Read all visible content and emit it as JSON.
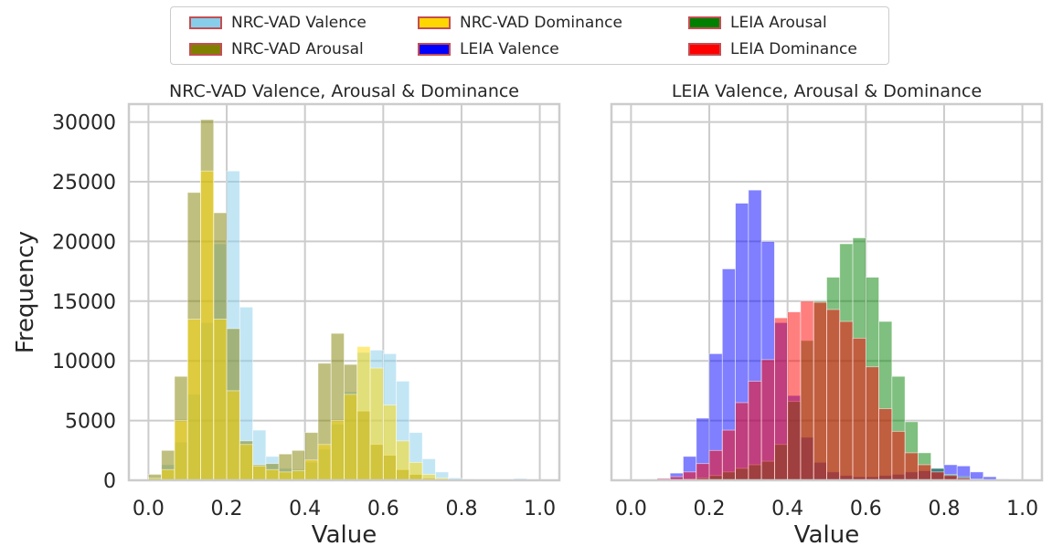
{
  "legend": {
    "items": [
      {
        "label": "NRC-VAD Valence",
        "color": "#87ceeb"
      },
      {
        "label": "NRC-VAD Arousal",
        "color": "#808000"
      },
      {
        "label": "NRC-VAD Dominance",
        "color": "#ffd700"
      },
      {
        "label": "LEIA Valence",
        "color": "#0000ff"
      },
      {
        "label": "LEIA Arousal",
        "color": "#008000"
      },
      {
        "label": "LEIA Dominance",
        "color": "#ff0000"
      }
    ],
    "border_color": "#c44e52"
  },
  "chart_data": [
    {
      "type": "bar",
      "title": "NRC-VAD Valence, Arousal & Dominance",
      "xlabel": "Value",
      "ylabel": "Frequency",
      "xlim": [
        -0.05,
        1.05
      ],
      "ylim": [
        0,
        31500
      ],
      "xticks": [
        "0.0",
        "0.2",
        "0.4",
        "0.6",
        "0.8",
        "1.0"
      ],
      "yticks": [
        "0",
        "5000",
        "10000",
        "15000",
        "20000",
        "25000",
        "30000"
      ],
      "grid": true,
      "bin_width": 0.0333,
      "alpha": 0.5,
      "series": [
        {
          "name": "NRC-VAD Valence",
          "color": "#87ceeb",
          "bins": [
            0,
            0.0333,
            0.0667,
            0.1,
            0.1333,
            0.1667,
            0.2,
            0.2333,
            0.2667,
            0.3,
            0.3333,
            0.3667,
            0.4,
            0.4333,
            0.4667,
            0.5,
            0.5333,
            0.5667,
            0.6,
            0.6333,
            0.6667,
            0.7,
            0.7333,
            0.7667,
            0.8,
            0.8333,
            0.8667,
            0.9,
            0.9333,
            0.9667
          ],
          "values": [
            300,
            1300,
            3200,
            7200,
            13200,
            19800,
            25900,
            14500,
            4200,
            2000,
            1000,
            900,
            1500,
            2600,
            4700,
            7400,
            10700,
            10900,
            10600,
            8300,
            4000,
            1800,
            700,
            200,
            100,
            50,
            30,
            20,
            150,
            50
          ]
        },
        {
          "name": "NRC-VAD Arousal",
          "color": "#808000",
          "bins": [
            0,
            0.0333,
            0.0667,
            0.1,
            0.1333,
            0.1667,
            0.2,
            0.2333,
            0.2667,
            0.3,
            0.3333,
            0.3667,
            0.4,
            0.4333,
            0.4667,
            0.5,
            0.5333,
            0.5667,
            0.6,
            0.6333,
            0.6667,
            0.7,
            0.7333,
            0.7667,
            0.8,
            0.8333,
            0.8667,
            0.9,
            0.9333,
            0.9667
          ],
          "values": [
            500,
            2500,
            8700,
            24100,
            30200,
            22400,
            12700,
            3300,
            1300,
            1400,
            2200,
            2500,
            4000,
            9800,
            12300,
            9700,
            5800,
            3000,
            2100,
            900,
            500,
            200,
            100,
            50,
            30,
            20,
            10,
            10,
            10,
            10
          ]
        },
        {
          "name": "NRC-VAD Dominance",
          "color": "#ffd700",
          "bins": [
            0,
            0.0333,
            0.0667,
            0.1,
            0.1333,
            0.1667,
            0.2,
            0.2333,
            0.2667,
            0.3,
            0.3333,
            0.3667,
            0.4,
            0.4333,
            0.4667,
            0.5,
            0.5333,
            0.5667,
            0.6,
            0.6333,
            0.6667,
            0.7,
            0.7333,
            0.7667,
            0.8,
            0.8333,
            0.8667,
            0.9,
            0.9333,
            0.9667
          ],
          "values": [
            200,
            900,
            5000,
            13500,
            25900,
            13500,
            7500,
            3000,
            1200,
            900,
            700,
            800,
            1700,
            3000,
            5000,
            7200,
            11200,
            9400,
            6300,
            3300,
            1500,
            500,
            200,
            60,
            30,
            20,
            10,
            10,
            10,
            10
          ]
        }
      ]
    },
    {
      "type": "bar",
      "title": "LEIA Valence, Arousal & Dominance",
      "xlabel": "Value",
      "ylabel": "",
      "xlim": [
        -0.05,
        1.05
      ],
      "ylim": [
        0,
        31500
      ],
      "xticks": [
        "0.0",
        "0.2",
        "0.4",
        "0.6",
        "0.8",
        "1.0"
      ],
      "yticks": [],
      "grid": true,
      "bin_width": 0.0333,
      "alpha": 0.5,
      "series": [
        {
          "name": "LEIA Valence",
          "color": "#0000ff",
          "bins": [
            0,
            0.0333,
            0.0667,
            0.1,
            0.1333,
            0.1667,
            0.2,
            0.2333,
            0.2667,
            0.3,
            0.3333,
            0.3667,
            0.4,
            0.4333,
            0.4667,
            0.5,
            0.5333,
            0.5667,
            0.6,
            0.6333,
            0.6667,
            0.7,
            0.7333,
            0.7667,
            0.8,
            0.8333,
            0.8667,
            0.9,
            0.9333,
            0.9667
          ],
          "values": [
            20,
            80,
            150,
            600,
            2000,
            5200,
            10600,
            17700,
            23200,
            24300,
            20000,
            13200,
            7100,
            3600,
            1500,
            700,
            400,
            300,
            300,
            400,
            500,
            700,
            800,
            1000,
            1300,
            1200,
            700,
            300,
            100,
            20
          ]
        },
        {
          "name": "LEIA Arousal",
          "color": "#008000",
          "bins": [
            0,
            0.0333,
            0.0667,
            0.1,
            0.1333,
            0.1667,
            0.2,
            0.2333,
            0.2667,
            0.3,
            0.3333,
            0.3667,
            0.4,
            0.4333,
            0.4667,
            0.5,
            0.5333,
            0.5667,
            0.6,
            0.6333,
            0.6667,
            0.7,
            0.7333,
            0.7667,
            0.8,
            0.8333,
            0.8667,
            0.9,
            0.9333,
            0.9667
          ],
          "values": [
            10,
            10,
            20,
            50,
            100,
            200,
            400,
            700,
            1000,
            1300,
            1600,
            3000,
            6600,
            11700,
            15000,
            17000,
            19800,
            20300,
            17000,
            13300,
            8700,
            4900,
            2300,
            1000,
            500,
            300,
            100,
            50,
            20,
            10
          ]
        },
        {
          "name": "LEIA Dominance",
          "color": "#ff0000",
          "bins": [
            0,
            0.0333,
            0.0667,
            0.1,
            0.1333,
            0.1667,
            0.2,
            0.2333,
            0.2667,
            0.3,
            0.3333,
            0.3667,
            0.4,
            0.4333,
            0.4667,
            0.5,
            0.5333,
            0.5667,
            0.6,
            0.6333,
            0.6667,
            0.7,
            0.7333,
            0.7667,
            0.8,
            0.8333,
            0.8667,
            0.9,
            0.9333,
            0.9667
          ],
          "values": [
            20,
            60,
            150,
            300,
            700,
            1400,
            2500,
            4200,
            6500,
            8300,
            10100,
            13600,
            14100,
            15000,
            14900,
            14300,
            13300,
            11900,
            9500,
            6000,
            4100,
            2300,
            1300,
            700,
            400,
            200,
            80,
            30,
            10,
            5
          ]
        }
      ]
    }
  ]
}
